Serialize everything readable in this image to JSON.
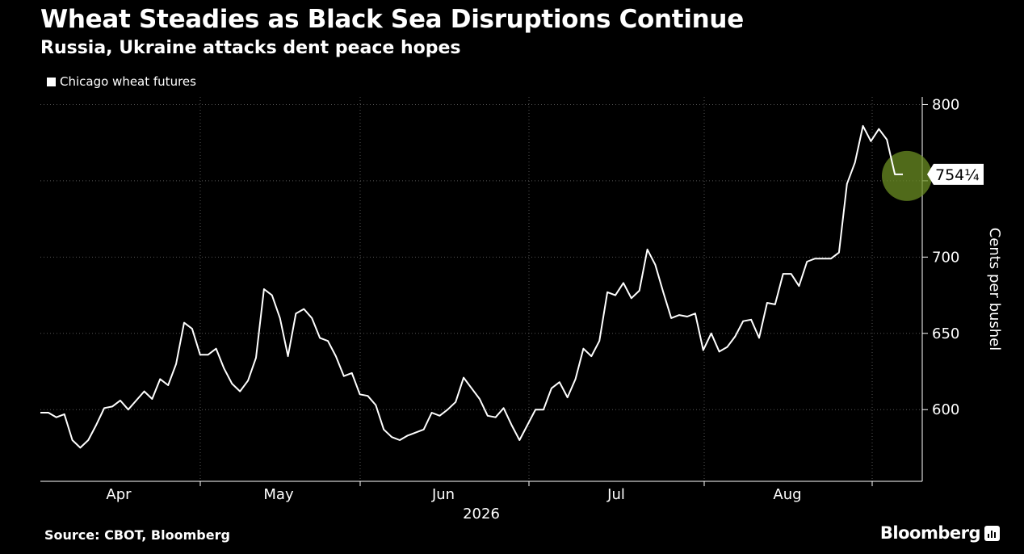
{
  "header": {
    "title": "Wheat Steadies as Black Sea Disruptions Continue",
    "subtitle": "Russia, Ukraine attacks dent peace hopes"
  },
  "footer": {
    "source": "Source: CBOT, Bloomberg",
    "brand": "Bloomberg"
  },
  "colors": {
    "background": "#000000",
    "line": "#ffffff",
    "grid": "#555555",
    "highlight": "#6b8e23"
  },
  "icons": {
    "brand": "bar-chart-icon"
  },
  "chart_data": {
    "type": "line",
    "title": "Wheat Steadies as Black Sea Disruptions Continue",
    "subtitle": "Russia, Ukraine attacks dent peace hopes",
    "legend": "top-left",
    "ylabel": "Cents per bushel",
    "ylim": [
      553,
      805
    ],
    "yticks": [
      600,
      650,
      700,
      800
    ],
    "x_tick_labels": [
      "Apr",
      "May",
      "Jun",
      "Jul",
      "Aug"
    ],
    "x_year_label": "2026",
    "grid": true,
    "last_value_label": "754¼",
    "series": [
      {
        "name": "Chicago wheat futures",
        "values": [
          598,
          598,
          595,
          597,
          580,
          575,
          580,
          590,
          601,
          602,
          606,
          600,
          606,
          612,
          607,
          620,
          616,
          630,
          657,
          653,
          636,
          636,
          640,
          627,
          617,
          612,
          619,
          634,
          679,
          675,
          660,
          635,
          663,
          666,
          660,
          647,
          645,
          635,
          622,
          624,
          610,
          609,
          603,
          587,
          582,
          580,
          583,
          585,
          587,
          598,
          596,
          600,
          605,
          621,
          614,
          607,
          596,
          595,
          601,
          590,
          580,
          590,
          600,
          600,
          614,
          618,
          608,
          620,
          640,
          635,
          645,
          677,
          675,
          683,
          673,
          678,
          705,
          695,
          677,
          660,
          662,
          661,
          663,
          639,
          650,
          638,
          641,
          648,
          658,
          659,
          647,
          670,
          669,
          689,
          689,
          681,
          697,
          699,
          699,
          699,
          703,
          748,
          762,
          786,
          776,
          784,
          777,
          754.25,
          754.25
        ]
      }
    ]
  }
}
